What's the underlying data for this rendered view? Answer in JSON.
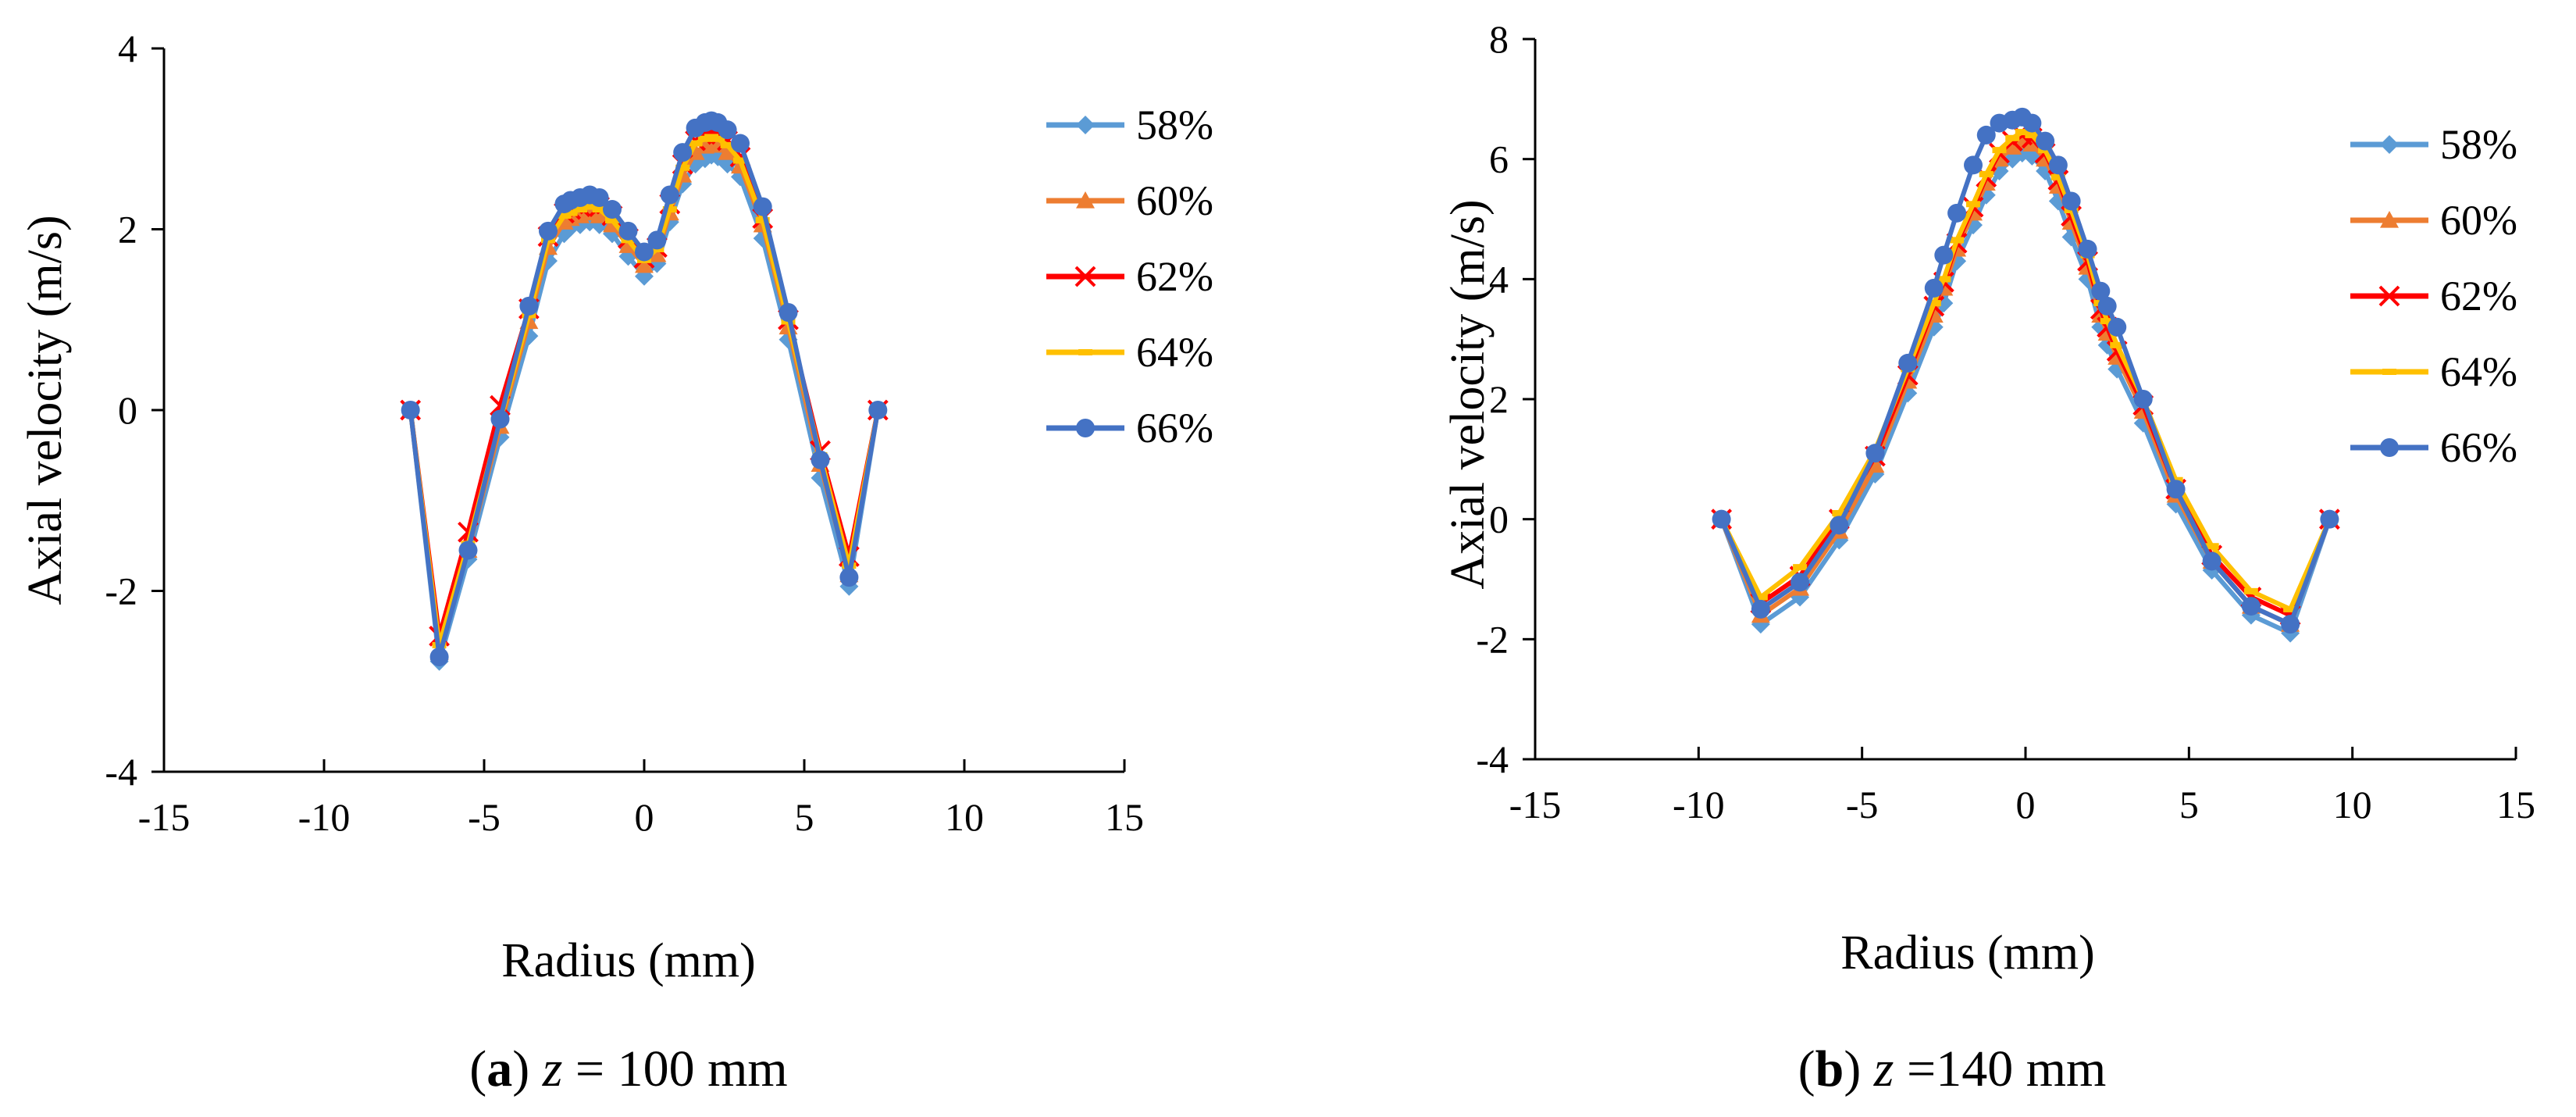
{
  "colors": {
    "58%": "#5b9bd5",
    "60%": "#ed7d31",
    "62%": "#ff0000",
    "64%": "#ffc000",
    "66%": "#4472c4"
  },
  "markers": {
    "58%": "diamond",
    "60%": "triangle",
    "62%": "cross",
    "64%": "dash",
    "66%": "circle"
  },
  "chart_data": [
    {
      "type": "line",
      "caption": {
        "letter": "a",
        "var": "z",
        "rest": " = 100 mm"
      },
      "xlabel": "Radius (mm)",
      "ylabel": "Axial velocity (m/s)",
      "xlim": [
        -15,
        15
      ],
      "ylim": [
        -4,
        4
      ],
      "xticks": [
        -15,
        -10,
        -5,
        0,
        5,
        10,
        15
      ],
      "yticks": [
        -4,
        -2,
        0,
        2,
        4
      ],
      "xtick_labels": [
        "-15",
        "-10",
        "-5",
        "0",
        "5",
        "10",
        "15"
      ],
      "ytick_labels": [
        "-4",
        "-2",
        "0",
        "2",
        "4"
      ],
      "x": [
        -7.3,
        -6.4,
        -5.5,
        -4.5,
        -3.6,
        -3.0,
        -2.5,
        -2.3,
        -2.0,
        -1.7,
        -1.4,
        -1.0,
        -0.5,
        0.0,
        0.4,
        0.8,
        1.2,
        1.6,
        1.9,
        2.1,
        2.3,
        2.6,
        3.0,
        3.7,
        4.5,
        5.5,
        6.4,
        7.3
      ],
      "series": [
        {
          "name": "58%",
          "values": [
            0,
            -2.78,
            -1.65,
            -0.3,
            0.82,
            1.65,
            1.95,
            2.02,
            2.05,
            2.08,
            2.05,
            1.95,
            1.7,
            1.48,
            1.62,
            2.08,
            2.5,
            2.72,
            2.78,
            2.82,
            2.8,
            2.72,
            2.58,
            1.9,
            0.78,
            -0.75,
            -1.95,
            0
          ]
        },
        {
          "name": "60%",
          "values": [
            0,
            -2.68,
            -1.55,
            -0.18,
            0.98,
            1.8,
            2.08,
            2.12,
            2.15,
            2.18,
            2.15,
            2.05,
            1.82,
            1.6,
            1.72,
            2.18,
            2.6,
            2.85,
            2.92,
            2.95,
            2.93,
            2.85,
            2.7,
            2.05,
            0.92,
            -0.6,
            -1.82,
            0
          ]
        },
        {
          "name": "62%",
          "values": [
            0,
            -2.5,
            -1.35,
            0.05,
            1.12,
            1.92,
            2.18,
            2.22,
            2.25,
            2.28,
            2.25,
            2.15,
            1.9,
            1.68,
            1.8,
            2.28,
            2.72,
            2.98,
            3.05,
            3.08,
            3.05,
            2.98,
            2.8,
            2.12,
            1.0,
            -0.45,
            -1.62,
            0
          ]
        },
        {
          "name": "64%",
          "values": [
            0,
            -2.6,
            -1.48,
            -0.12,
            1.05,
            1.88,
            2.15,
            2.18,
            2.22,
            2.25,
            2.22,
            2.1,
            1.88,
            1.66,
            1.78,
            2.22,
            2.68,
            2.95,
            3.0,
            3.02,
            3.0,
            2.93,
            2.76,
            2.1,
            0.98,
            -0.5,
            -1.72,
            0
          ]
        },
        {
          "name": "66%",
          "values": [
            0,
            -2.73,
            -1.55,
            -0.1,
            1.15,
            1.98,
            2.28,
            2.32,
            2.35,
            2.38,
            2.35,
            2.22,
            1.98,
            1.75,
            1.88,
            2.38,
            2.85,
            3.12,
            3.18,
            3.2,
            3.18,
            3.1,
            2.95,
            2.25,
            1.08,
            -0.55,
            -1.85,
            0
          ]
        }
      ],
      "legend": [
        "58%",
        "60%",
        "62%",
        "64%",
        "66%"
      ]
    },
    {
      "type": "line",
      "caption": {
        "letter": "b",
        "var": "z",
        "rest": " =140 mm"
      },
      "xlabel": "Radius (mm)",
      "ylabel": "Axial velocity (m/s)",
      "xlim": [
        -15,
        15
      ],
      "ylim": [
        -4,
        8
      ],
      "xticks": [
        -15,
        -10,
        -5,
        0,
        5,
        10,
        15
      ],
      "yticks": [
        -4,
        -2,
        0,
        2,
        4,
        6,
        8
      ],
      "xtick_labels": [
        "-15",
        "-10",
        "-5",
        "0",
        "5",
        "10",
        "15"
      ],
      "ytick_labels": [
        "-4",
        "-2",
        "0",
        "2",
        "4",
        "6",
        "8"
      ],
      "x": [
        -9.3,
        -8.1,
        -6.9,
        -5.7,
        -4.6,
        -3.6,
        -2.8,
        -2.5,
        -2.1,
        -1.6,
        -1.2,
        -0.8,
        -0.4,
        -0.1,
        0.2,
        0.6,
        1.0,
        1.4,
        1.9,
        2.3,
        2.5,
        2.8,
        3.6,
        4.6,
        5.7,
        6.9,
        8.1,
        9.3
      ],
      "series": [
        {
          "name": "58%",
          "values": [
            0,
            -1.75,
            -1.3,
            -0.35,
            0.75,
            2.1,
            3.2,
            3.6,
            4.3,
            4.9,
            5.4,
            5.8,
            6.0,
            6.1,
            6.05,
            5.8,
            5.3,
            4.7,
            4.0,
            3.2,
            2.9,
            2.5,
            1.6,
            0.25,
            -0.85,
            -1.6,
            -1.9,
            0
          ]
        },
        {
          "name": "60%",
          "values": [
            0,
            -1.6,
            -1.15,
            -0.2,
            0.9,
            2.3,
            3.4,
            3.85,
            4.5,
            5.1,
            5.6,
            6.0,
            6.2,
            6.3,
            6.25,
            6.0,
            5.55,
            4.95,
            4.2,
            3.4,
            3.1,
            2.7,
            1.8,
            0.4,
            -0.7,
            -1.45,
            -1.75,
            0
          ]
        },
        {
          "name": "62%",
          "values": [
            0,
            -1.4,
            -0.95,
            0.0,
            1.05,
            2.4,
            3.55,
            3.95,
            4.6,
            5.2,
            5.7,
            6.1,
            6.3,
            6.4,
            6.35,
            6.1,
            5.65,
            5.05,
            4.3,
            3.5,
            3.2,
            2.8,
            1.9,
            0.5,
            -0.6,
            -1.3,
            -1.6,
            0
          ]
        },
        {
          "name": "64%",
          "values": [
            0,
            -1.3,
            -0.8,
            0.1,
            1.15,
            2.5,
            3.6,
            4.0,
            4.65,
            5.25,
            5.75,
            6.15,
            6.35,
            6.45,
            6.4,
            6.15,
            5.7,
            5.15,
            4.4,
            3.6,
            3.3,
            2.9,
            2.0,
            0.65,
            -0.45,
            -1.2,
            -1.5,
            0
          ]
        },
        {
          "name": "66%",
          "values": [
            0,
            -1.5,
            -1.05,
            -0.1,
            1.1,
            2.6,
            3.85,
            4.4,
            5.1,
            5.9,
            6.4,
            6.6,
            6.65,
            6.7,
            6.6,
            6.3,
            5.9,
            5.3,
            4.5,
            3.8,
            3.55,
            3.2,
            2.0,
            0.5,
            -0.7,
            -1.45,
            -1.75,
            0
          ]
        }
      ],
      "legend": [
        "58%",
        "60%",
        "62%",
        "64%",
        "66%"
      ]
    }
  ]
}
